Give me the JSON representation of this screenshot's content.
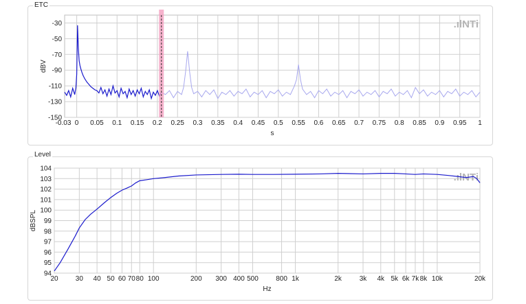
{
  "colors": {
    "series": "#1a1acc",
    "series_faded": "#a8a8ee",
    "cursor": "#f4a0c0",
    "grid": "#cfcfcf",
    "logo": "#b4b4b4"
  },
  "logo": {
    "dots": ".ıl",
    "text": "NTi",
    "icon": "nti-logo-icon"
  },
  "chart_data": [
    {
      "type": "line",
      "title": "ETC",
      "xlabel": "s",
      "ylabel": "dBV",
      "xlim": [
        -0.03,
        1.0
      ],
      "ylim": [
        -150,
        -20
      ],
      "x_ticks": [
        0,
        0.05,
        0.1,
        0.15,
        0.2,
        0.25,
        0.3,
        0.35,
        0.4,
        0.45,
        0.5,
        0.55,
        0.6,
        0.65,
        0.7,
        0.75,
        0.8,
        0.85,
        0.9,
        0.95,
        1.0
      ],
      "x_tick_labels": [
        "0",
        "0.05",
        "0.1",
        "0.15",
        "0.2",
        "0.25",
        "0.3",
        "0.35",
        "0.4",
        "0.45",
        "0.5",
        "0.55",
        "0.6",
        "0.65",
        "0.7",
        "0.75",
        "0.8",
        "0.85",
        "0.9",
        "0.95",
        "1"
      ],
      "x_min_label": "-0.03",
      "y_ticks": [
        -150,
        -130,
        -110,
        -90,
        -70,
        -50,
        -30
      ],
      "y_tick_labels": [
        "-150",
        "-130",
        "-110",
        "-90",
        "-70",
        "-50",
        "-30"
      ],
      "cursor_x": 0.21,
      "grid": true,
      "series": [
        {
          "style": "solid-then-faded",
          "faded_after_x": 0.21,
          "points": [
            [
              -0.03,
              -118
            ],
            [
              -0.025,
              -122
            ],
            [
              -0.02,
              -116
            ],
            [
              -0.015,
              -124
            ],
            [
              -0.01,
              -113
            ],
            [
              -0.005,
              -121
            ],
            [
              -0.002,
              -112
            ],
            [
              0.0,
              -95
            ],
            [
              0.002,
              -33
            ],
            [
              0.004,
              -62
            ],
            [
              0.006,
              -78
            ],
            [
              0.008,
              -84
            ],
            [
              0.01,
              -88
            ],
            [
              0.013,
              -93
            ],
            [
              0.016,
              -97
            ],
            [
              0.02,
              -101
            ],
            [
              0.025,
              -105
            ],
            [
              0.03,
              -108
            ],
            [
              0.035,
              -111
            ],
            [
              0.04,
              -113
            ],
            [
              0.045,
              -115
            ],
            [
              0.05,
              -116
            ],
            [
              0.055,
              -119
            ],
            [
              0.06,
              -112
            ],
            [
              0.065,
              -120
            ],
            [
              0.07,
              -115
            ],
            [
              0.075,
              -123
            ],
            [
              0.08,
              -114
            ],
            [
              0.085,
              -121
            ],
            [
              0.09,
              -110
            ],
            [
              0.095,
              -119
            ],
            [
              0.1,
              -116
            ],
            [
              0.105,
              -124
            ],
            [
              0.11,
              -113
            ],
            [
              0.115,
              -120
            ],
            [
              0.12,
              -117
            ],
            [
              0.125,
              -125
            ],
            [
              0.13,
              -114
            ],
            [
              0.135,
              -121
            ],
            [
              0.14,
              -116
            ],
            [
              0.145,
              -123
            ],
            [
              0.15,
              -115
            ],
            [
              0.155,
              -120
            ],
            [
              0.16,
              -113
            ],
            [
              0.165,
              -124
            ],
            [
              0.17,
              -117
            ],
            [
              0.175,
              -121
            ],
            [
              0.18,
              -115
            ],
            [
              0.185,
              -126
            ],
            [
              0.19,
              -118
            ],
            [
              0.195,
              -122
            ],
            [
              0.2,
              -116
            ],
            [
              0.205,
              -123
            ],
            [
              0.21,
              -118
            ],
            [
              0.22,
              -121
            ],
            [
              0.23,
              -116
            ],
            [
              0.24,
              -125
            ],
            [
              0.25,
              -117
            ],
            [
              0.26,
              -121
            ],
            [
              0.265,
              -112
            ],
            [
              0.27,
              -92
            ],
            [
              0.275,
              -66
            ],
            [
              0.28,
              -92
            ],
            [
              0.285,
              -112
            ],
            [
              0.29,
              -120
            ],
            [
              0.3,
              -117
            ],
            [
              0.31,
              -124
            ],
            [
              0.32,
              -116
            ],
            [
              0.33,
              -121
            ],
            [
              0.34,
              -115
            ],
            [
              0.35,
              -126
            ],
            [
              0.36,
              -118
            ],
            [
              0.37,
              -121
            ],
            [
              0.38,
              -116
            ],
            [
              0.39,
              -123
            ],
            [
              0.4,
              -117
            ],
            [
              0.41,
              -120
            ],
            [
              0.42,
              -114
            ],
            [
              0.43,
              -124
            ],
            [
              0.44,
              -118
            ],
            [
              0.45,
              -121
            ],
            [
              0.46,
              -116
            ],
            [
              0.47,
              -125
            ],
            [
              0.48,
              -117
            ],
            [
              0.49,
              -120
            ],
            [
              0.5,
              -115
            ],
            [
              0.51,
              -123
            ],
            [
              0.52,
              -118
            ],
            [
              0.53,
              -121
            ],
            [
              0.54,
              -110
            ],
            [
              0.545,
              -102
            ],
            [
              0.55,
              -83
            ],
            [
              0.555,
              -102
            ],
            [
              0.56,
              -114
            ],
            [
              0.57,
              -121
            ],
            [
              0.58,
              -117
            ],
            [
              0.59,
              -125
            ],
            [
              0.6,
              -116
            ],
            [
              0.61,
              -120
            ],
            [
              0.62,
              -114
            ],
            [
              0.63,
              -123
            ],
            [
              0.64,
              -118
            ],
            [
              0.65,
              -121
            ],
            [
              0.66,
              -116
            ],
            [
              0.67,
              -125
            ],
            [
              0.68,
              -117
            ],
            [
              0.69,
              -120
            ],
            [
              0.7,
              -115
            ],
            [
              0.71,
              -123
            ],
            [
              0.72,
              -118
            ],
            [
              0.73,
              -121
            ],
            [
              0.74,
              -116
            ],
            [
              0.75,
              -124
            ],
            [
              0.76,
              -117
            ],
            [
              0.77,
              -120
            ],
            [
              0.78,
              -114
            ],
            [
              0.79,
              -123
            ],
            [
              0.8,
              -118
            ],
            [
              0.81,
              -121
            ],
            [
              0.82,
              -116
            ],
            [
              0.83,
              -125
            ],
            [
              0.84,
              -112
            ],
            [
              0.85,
              -120
            ],
            [
              0.86,
              -115
            ],
            [
              0.87,
              -123
            ],
            [
              0.88,
              -118
            ],
            [
              0.89,
              -121
            ],
            [
              0.9,
              -116
            ],
            [
              0.91,
              -124
            ],
            [
              0.92,
              -117
            ],
            [
              0.93,
              -120
            ],
            [
              0.94,
              -114
            ],
            [
              0.95,
              -123
            ],
            [
              0.96,
              -118
            ],
            [
              0.97,
              -121
            ],
            [
              0.98,
              -116
            ],
            [
              0.99,
              -124
            ],
            [
              1.0,
              -118
            ]
          ]
        }
      ]
    },
    {
      "type": "line",
      "title": "Level",
      "xlabel": "Hz",
      "ylabel": "dBSPL",
      "xscale": "log",
      "xlim": [
        20,
        20000
      ],
      "ylim": [
        94,
        104
      ],
      "x_ticks": [
        20,
        30,
        40,
        50,
        60,
        70,
        80,
        100,
        200,
        300,
        400,
        500,
        800,
        1000,
        2000,
        3000,
        4000,
        5000,
        6000,
        7000,
        8000,
        10000,
        20000
      ],
      "x_tick_labels": [
        "20",
        "30",
        "40",
        "50",
        "60",
        "70",
        "80",
        "100",
        "200",
        "300",
        "400",
        "500",
        "800",
        "1k",
        "2k",
        "3k",
        "4k",
        "5k",
        "6k",
        "7k",
        "8k",
        "10k",
        "20k"
      ],
      "y_ticks": [
        94,
        95,
        96,
        97,
        98,
        99,
        100,
        101,
        102,
        103,
        104
      ],
      "y_tick_labels": [
        "94",
        "95",
        "96",
        "97",
        "98",
        "99",
        "100",
        "101",
        "102",
        "103",
        "104"
      ],
      "grid": true,
      "series": [
        {
          "points": [
            [
              20,
              94.2
            ],
            [
              22,
              95.0
            ],
            [
              25,
              96.3
            ],
            [
              28,
              97.5
            ],
            [
              30,
              98.3
            ],
            [
              33,
              99.1
            ],
            [
              36,
              99.6
            ],
            [
              40,
              100.1
            ],
            [
              45,
              100.7
            ],
            [
              50,
              101.2
            ],
            [
              55,
              101.6
            ],
            [
              60,
              101.9
            ],
            [
              65,
              102.1
            ],
            [
              70,
              102.3
            ],
            [
              75,
              102.6
            ],
            [
              80,
              102.8
            ],
            [
              90,
              102.9
            ],
            [
              100,
              103.0
            ],
            [
              120,
              103.1
            ],
            [
              150,
              103.25
            ],
            [
              200,
              103.35
            ],
            [
              300,
              103.4
            ],
            [
              400,
              103.42
            ],
            [
              500,
              103.4
            ],
            [
              700,
              103.4
            ],
            [
              1000,
              103.42
            ],
            [
              1500,
              103.45
            ],
            [
              2000,
              103.5
            ],
            [
              3000,
              103.45
            ],
            [
              4000,
              103.5
            ],
            [
              5000,
              103.5
            ],
            [
              6000,
              103.45
            ],
            [
              7000,
              103.4
            ],
            [
              8000,
              103.45
            ],
            [
              10000,
              103.4
            ],
            [
              12000,
              103.3
            ],
            [
              14000,
              103.2
            ],
            [
              16000,
              103.1
            ],
            [
              18000,
              103.2
            ],
            [
              19000,
              103.0
            ],
            [
              20000,
              102.6
            ]
          ]
        }
      ]
    }
  ]
}
